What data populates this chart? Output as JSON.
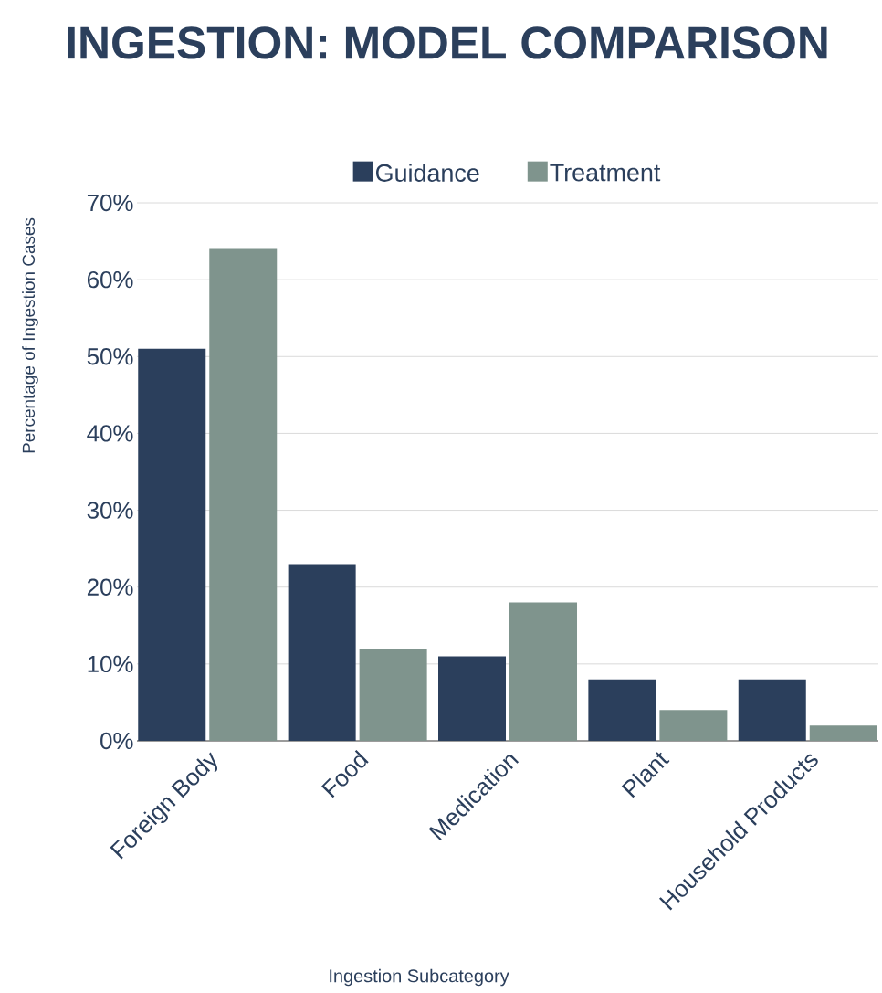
{
  "chart_data": {
    "type": "bar",
    "title": "INGESTION: MODEL COMPARISON",
    "xlabel": "Ingestion Subcategory",
    "ylabel": "Percentage of Ingestion Cases",
    "categories": [
      "Foreign Body",
      "Food",
      "Medication",
      "Plant",
      "Household Products"
    ],
    "series": [
      {
        "name": "Guidance",
        "color": "#2b3f5c",
        "values": [
          51,
          23,
          11,
          8,
          8
        ]
      },
      {
        "name": "Treatment",
        "color": "#7f948d",
        "values": [
          64,
          12,
          18,
          4,
          2
        ]
      }
    ],
    "ylim": [
      0,
      70
    ],
    "yticks": [
      {
        "value": 0,
        "label": "0%"
      },
      {
        "value": 10,
        "label": "10%"
      },
      {
        "value": 20,
        "label": "20%"
      },
      {
        "value": 30,
        "label": "30%"
      },
      {
        "value": 40,
        "label": "40%"
      },
      {
        "value": 50,
        "label": "50%"
      },
      {
        "value": 60,
        "label": "60%"
      },
      {
        "value": 70,
        "label": "70%"
      }
    ],
    "grid": "y",
    "legend": "top"
  }
}
